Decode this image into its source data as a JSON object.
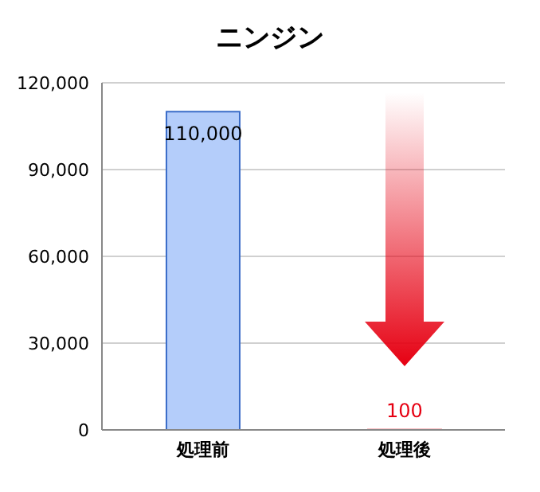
{
  "chart_data": {
    "type": "bar",
    "title": "ニンジン",
    "categories": [
      "処理前",
      "処理後"
    ],
    "values": [
      110000,
      100
    ],
    "value_labels": [
      "110,000",
      "100"
    ],
    "colors": [
      "#b4cdfa",
      "#e60012"
    ],
    "ylim": [
      0,
      120000
    ],
    "yticks": [
      0,
      {
        "value": 30000,
        "label": "30,000"
      },
      {
        "value": 60000,
        "label": "60,000"
      },
      {
        "value": 90000,
        "label": "90,000"
      },
      {
        "value": 120000,
        "label": "120,000"
      }
    ],
    "grid": "y"
  }
}
